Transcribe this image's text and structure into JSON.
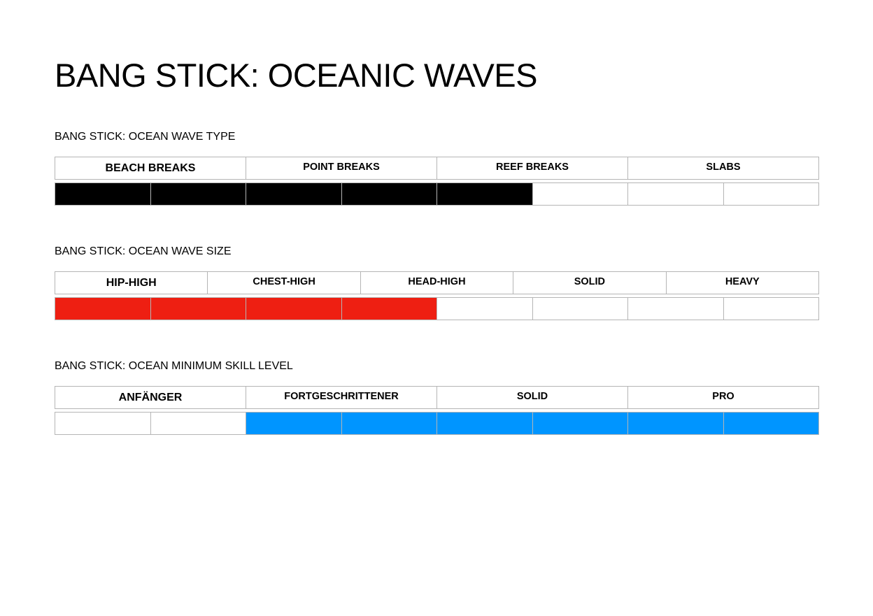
{
  "title": "BANG STICK: OCEANIC WAVES",
  "sections": [
    {
      "label": "BANG STICK: OCEAN WAVE TYPE",
      "headers": [
        "BEACH BREAKS",
        "POINT BREAKS",
        "REEF BREAKS",
        "SLABS"
      ],
      "color": "#000000",
      "filled": [
        true,
        true,
        true,
        true,
        true,
        false,
        false,
        false
      ]
    },
    {
      "label": "BANG STICK: OCEAN WAVE SIZE",
      "headers": [
        "HIP-HIGH",
        "CHEST-HIGH",
        "HEAD-HIGH",
        "SOLID",
        "HEAVY"
      ],
      "color": "#ee1f12",
      "filled": [
        true,
        true,
        true,
        true,
        false,
        false,
        false,
        false
      ]
    },
    {
      "label": "BANG STICK: OCEAN MINIMUM SKILL LEVEL",
      "headers": [
        "ANFÄNGER",
        "FORTGESCHRITTENER",
        "SOLID",
        "PRO"
      ],
      "color": "#0095ff",
      "filled": [
        false,
        false,
        true,
        true,
        true,
        true,
        true,
        true
      ]
    }
  ]
}
